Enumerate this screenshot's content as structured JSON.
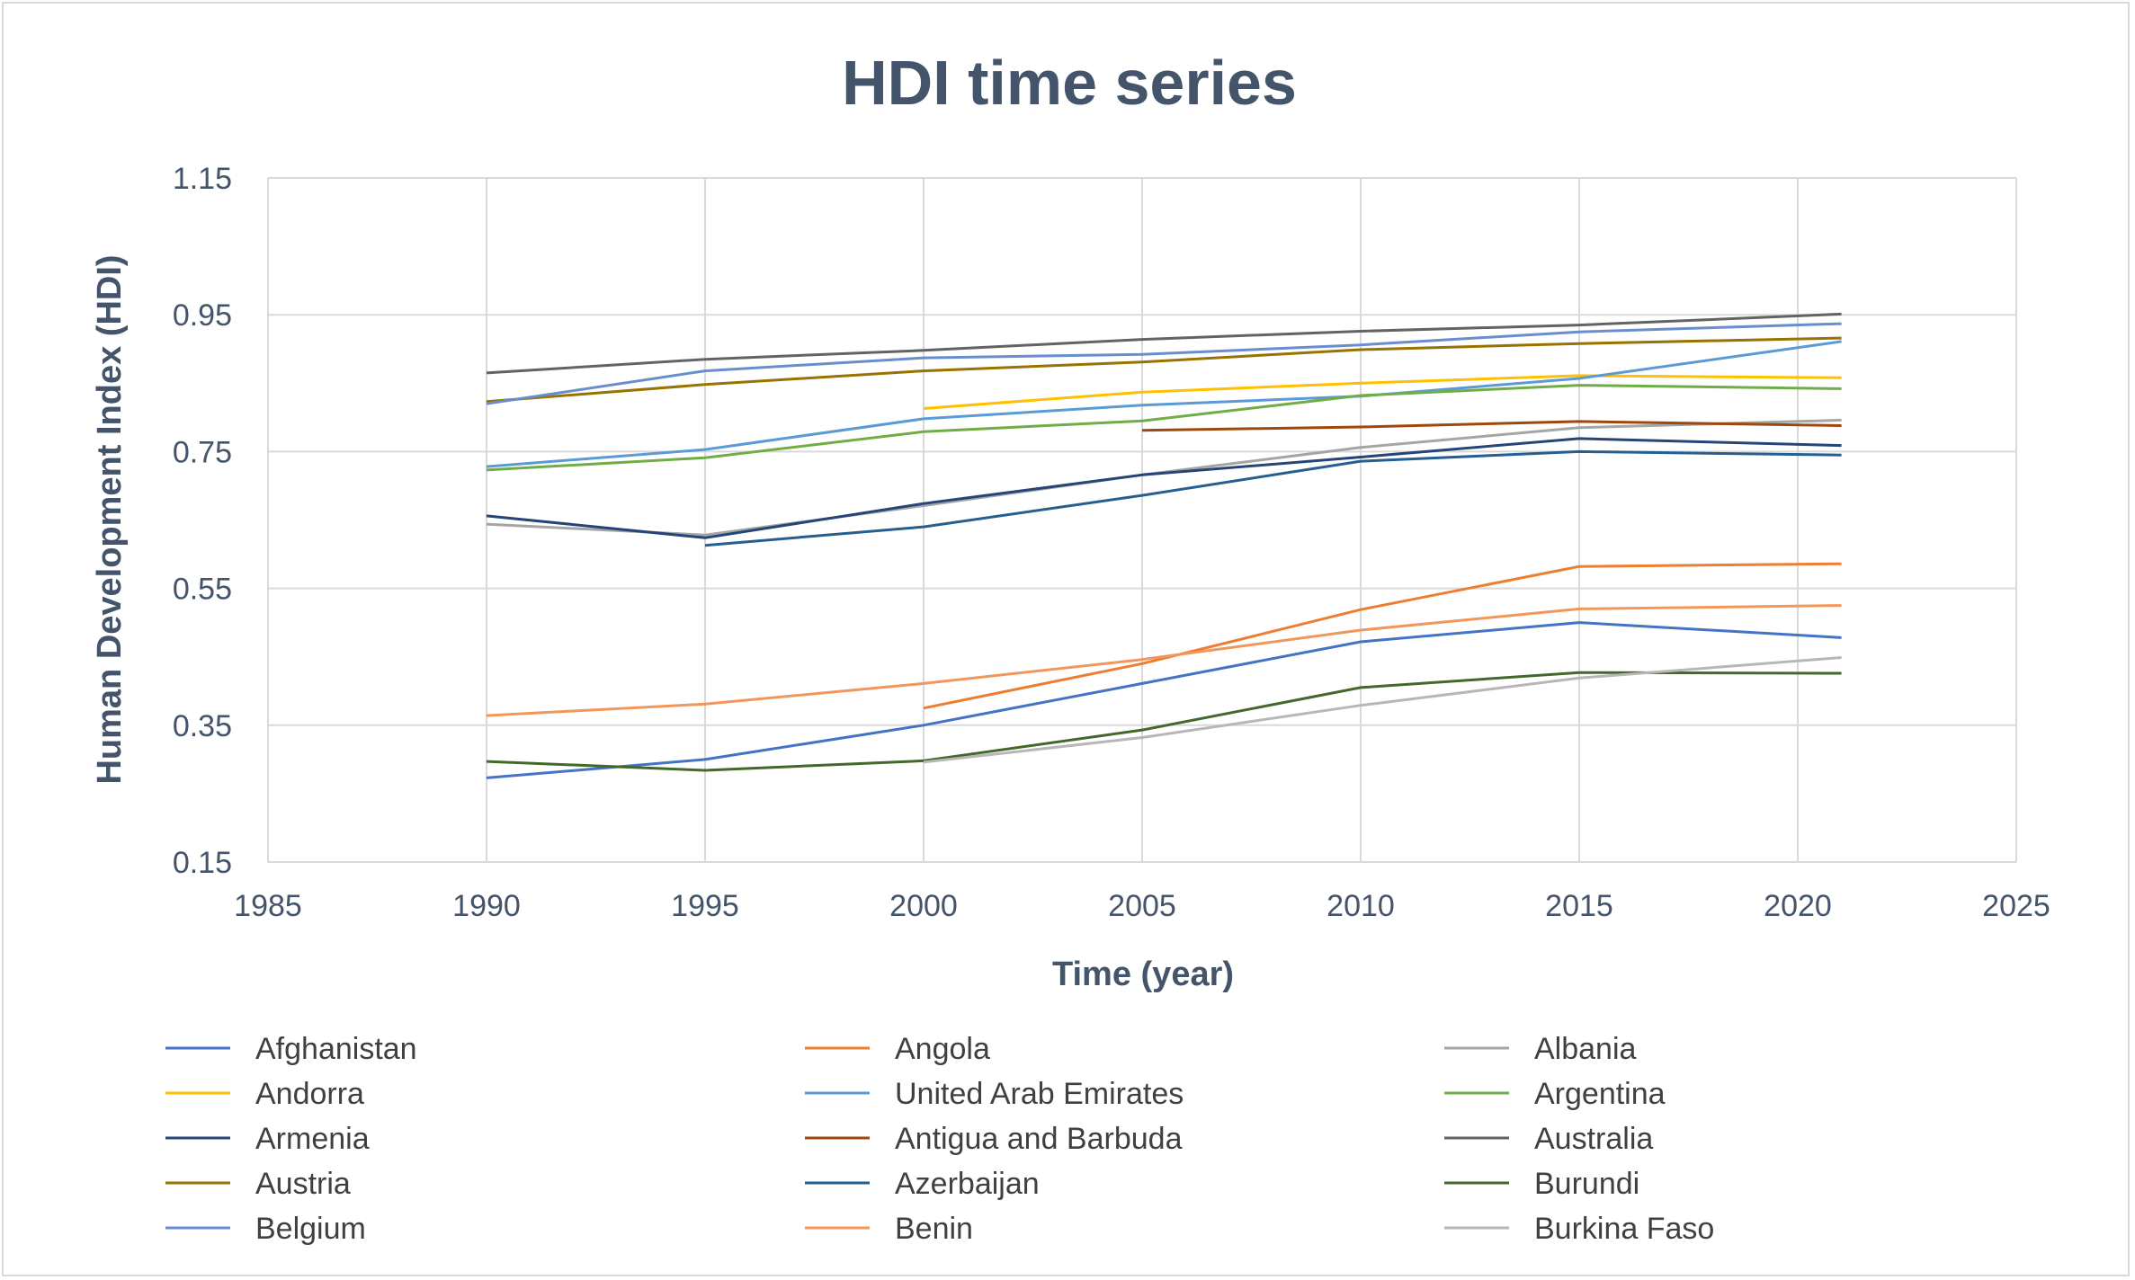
{
  "chart_data": {
    "type": "line",
    "title": "HDI time series",
    "xlabel": "Time (year)",
    "ylabel": "Human Development Index (HDI)",
    "xlim": [
      1985,
      2025
    ],
    "ylim": [
      0.15,
      1.15
    ],
    "xticks": [
      1985,
      1990,
      1995,
      2000,
      2005,
      2010,
      2015,
      2020,
      2025
    ],
    "yticks": [
      0.15,
      0.35,
      0.55,
      0.75,
      0.95,
      1.15
    ],
    "ytick_labels": [
      "0.15",
      "0.35",
      "0.55",
      "0.75",
      "0.95",
      "1.15"
    ],
    "grid": true,
    "legend_position": "bottom",
    "x": [
      1990,
      1995,
      2000,
      2005,
      2010,
      2015,
      2021
    ],
    "series": [
      {
        "name": "Afghanistan",
        "color": "#4472c4",
        "values": [
          0.273,
          0.3,
          0.35,
          0.411,
          0.472,
          0.5,
          0.478
        ]
      },
      {
        "name": "Angola",
        "color": "#ed7d31",
        "values": [
          null,
          null,
          0.375,
          0.44,
          0.519,
          0.582,
          0.586
        ]
      },
      {
        "name": "Albania",
        "color": "#a5a5a5",
        "values": [
          0.644,
          0.628,
          0.671,
          0.716,
          0.756,
          0.785,
          0.796
        ]
      },
      {
        "name": "Andorra",
        "color": "#ffc000",
        "values": [
          null,
          null,
          0.813,
          0.837,
          0.85,
          0.861,
          0.858
        ]
      },
      {
        "name": "United Arab Emirates",
        "color": "#5b9bd5",
        "values": [
          0.728,
          0.753,
          0.798,
          0.818,
          0.831,
          0.857,
          0.911
        ]
      },
      {
        "name": "Argentina",
        "color": "#70ad47",
        "values": [
          0.723,
          0.741,
          0.779,
          0.795,
          0.832,
          0.847,
          0.842
        ]
      },
      {
        "name": "Armenia",
        "color": "#264478",
        "values": [
          0.656,
          0.624,
          0.674,
          0.716,
          0.742,
          0.769,
          0.759
        ]
      },
      {
        "name": "Antigua and Barbuda",
        "color": "#9e480e",
        "values": [
          null,
          null,
          null,
          0.781,
          0.786,
          0.794,
          0.788
        ]
      },
      {
        "name": "Australia",
        "color": "#636363",
        "values": [
          0.865,
          0.885,
          0.898,
          0.914,
          0.926,
          0.935,
          0.951
        ]
      },
      {
        "name": "Austria",
        "color": "#997300",
        "values": [
          0.823,
          0.848,
          0.868,
          0.881,
          0.899,
          0.908,
          0.916
        ]
      },
      {
        "name": "Azerbaijan",
        "color": "#255e91",
        "values": [
          null,
          0.613,
          0.64,
          0.686,
          0.736,
          0.75,
          0.745
        ]
      },
      {
        "name": "Burundi",
        "color": "#43682b",
        "values": [
          0.297,
          0.284,
          0.298,
          0.343,
          0.405,
          0.427,
          0.426
        ]
      },
      {
        "name": "Belgium",
        "color": "#698ed0",
        "values": [
          0.82,
          0.868,
          0.887,
          0.892,
          0.906,
          0.925,
          0.937
        ]
      },
      {
        "name": "Benin",
        "color": "#f1975a",
        "values": [
          0.364,
          0.381,
          0.411,
          0.446,
          0.489,
          0.52,
          0.525
        ]
      },
      {
        "name": "Burkina Faso",
        "color": "#b7b7b7",
        "values": [
          null,
          null,
          0.296,
          0.332,
          0.379,
          0.419,
          0.449
        ]
      }
    ]
  }
}
